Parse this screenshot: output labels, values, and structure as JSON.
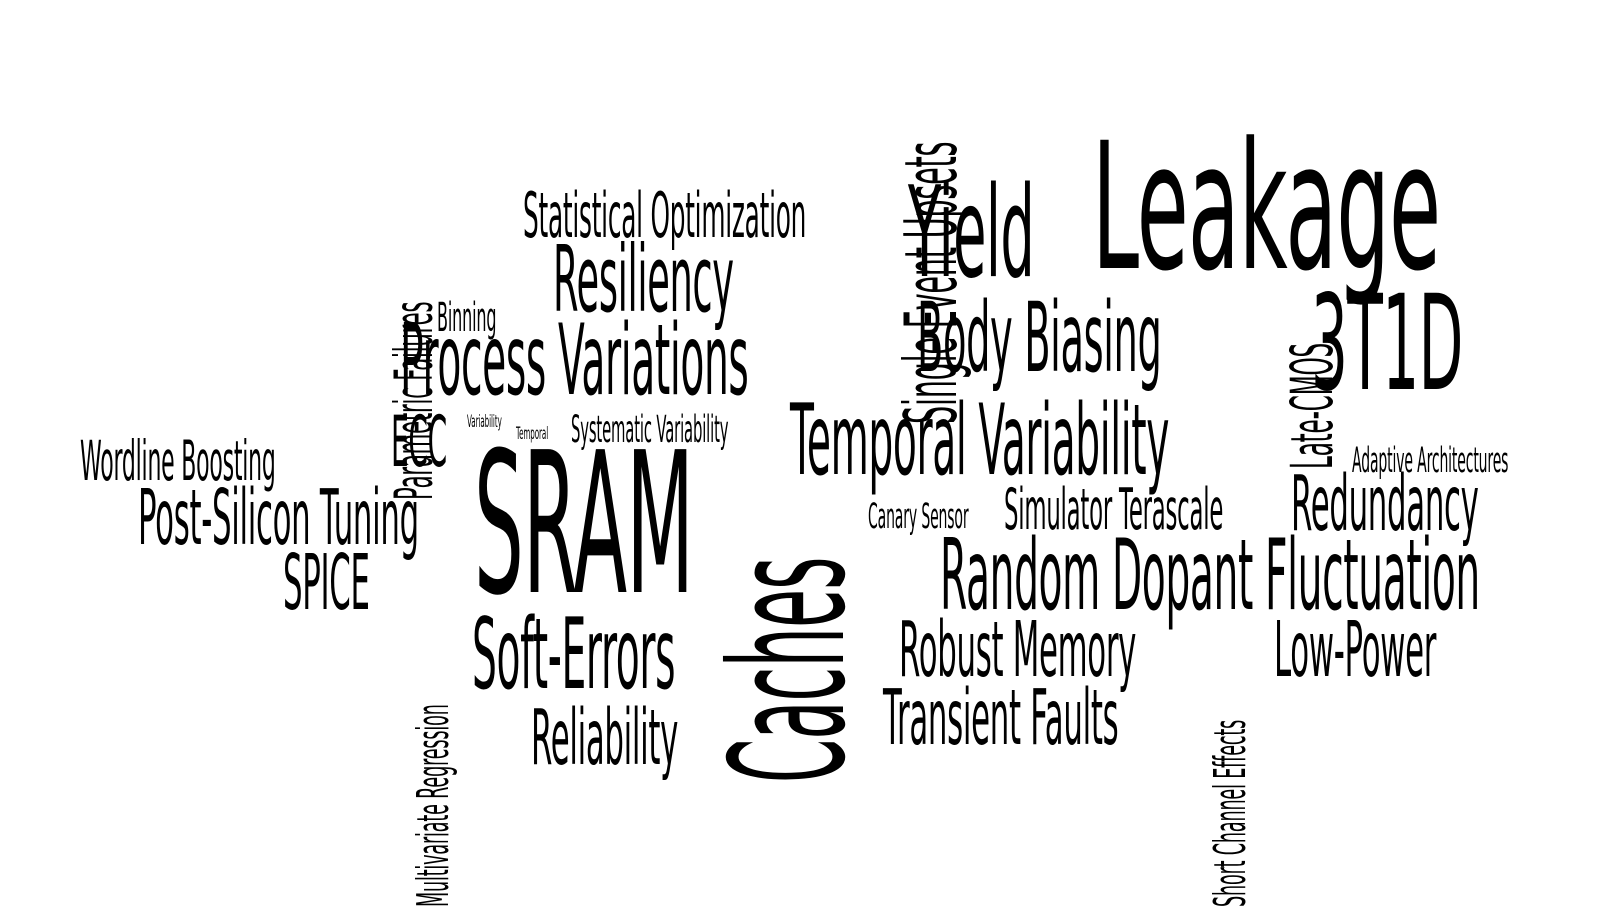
{
  "words": {
    "leakage": "Leakage",
    "yield": "Yield",
    "t3t1d": "3T1D",
    "statistical_optimization": "Statistical Optimization",
    "resiliency": "Resiliency",
    "binning": "Binning",
    "body_biasing": "Body Biasing",
    "process_variations": "Process Variations",
    "variability": "Variability",
    "temporal": "Temporal",
    "systematic_variability": "Systematic Variability",
    "ecc": "ECC",
    "temporal_variability": "Temporal Variability",
    "adaptive_architectures": "Adaptive Architectures",
    "wordline_boosting": "Wordline Boosting",
    "sram": "SRAM",
    "post_silicon_tuning": "Post-Silicon Tuning",
    "canary_sensor": "Canary Sensor",
    "simulator_terascale": "Simulator Terascale",
    "redundancy": "Redundancy",
    "spice": "SPICE",
    "random_dopant_fluctuation": "Random Dopant Fluctuation",
    "soft_errors": "Soft-Errors",
    "robust_memory": "Robust Memory",
    "low_power": "Low-Power",
    "transient_faults": "Transient Faults",
    "reliability": "Reliability",
    "single_event_upsets": "Single Event Upsets",
    "parametric_failures": "Parametric Failures",
    "late_cmos": "Late-CMOS",
    "caches": "Caches",
    "multivariate_regression": "Multivariate Regression",
    "short_channel_effects": "Short Channel Effects"
  },
  "colors": {
    "text": "#000000",
    "background": "#ffffff"
  }
}
